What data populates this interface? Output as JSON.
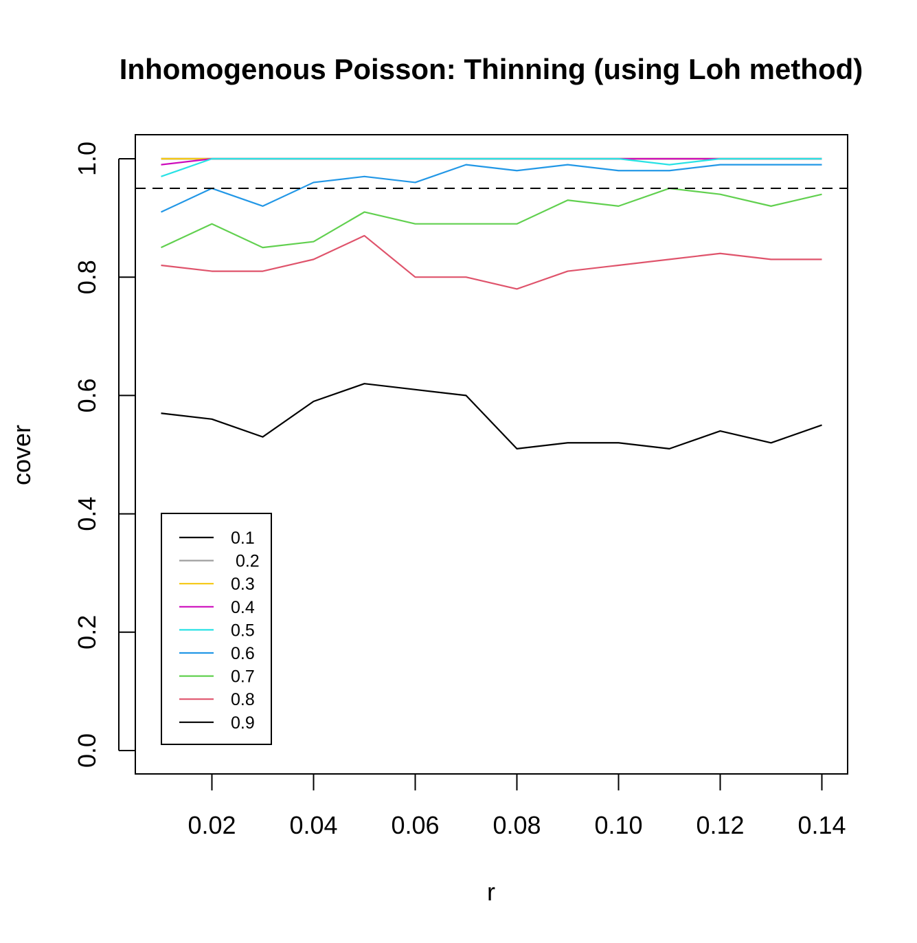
{
  "chart_data": {
    "type": "line",
    "title": "Inhomogenous Poisson: Thinning (using Loh method)",
    "xlabel": "r",
    "ylabel": "cover",
    "xlim": [
      0.01,
      0.14
    ],
    "ylim": [
      0.0,
      1.0
    ],
    "x_ticks": [
      "0.02",
      "0.04",
      "0.06",
      "0.08",
      "0.10",
      "0.12",
      "0.14"
    ],
    "y_ticks": [
      "0.0",
      "0.2",
      "0.4",
      "0.6",
      "0.8",
      "1.0"
    ],
    "x": [
      0.01,
      0.02,
      0.03,
      0.04,
      0.05,
      0.06,
      0.07,
      0.08,
      0.09,
      0.1,
      0.11,
      0.12,
      0.13,
      0.14
    ],
    "reference_line": {
      "y": 0.95,
      "style": "dashed",
      "color": "#000000"
    },
    "legend_position": "bottom-left",
    "grid": false,
    "series": [
      {
        "name": "0.1",
        "color": "#000000",
        "values": [
          1,
          1,
          1,
          1,
          1,
          1,
          1,
          1,
          1,
          1,
          1,
          1,
          1,
          1
        ]
      },
      {
        "name": " 0.2",
        "color": "#9e9e9e",
        "values": [
          1,
          1,
          1,
          1,
          1,
          1,
          1,
          1,
          1,
          1,
          1,
          1,
          1,
          1
        ]
      },
      {
        "name": "0.3",
        "color": "#f5c710",
        "values": [
          1,
          1,
          1,
          1,
          1,
          1,
          1,
          1,
          1,
          1,
          1,
          1,
          1,
          1
        ]
      },
      {
        "name": "0.4",
        "color": "#cd0bbc",
        "values": [
          0.99,
          1,
          1,
          1,
          1,
          1,
          1,
          1,
          1,
          1,
          1,
          1,
          1,
          1
        ]
      },
      {
        "name": "0.5",
        "color": "#28e2e5",
        "values": [
          0.97,
          1,
          1,
          1,
          1,
          1,
          1,
          1,
          1,
          1,
          0.99,
          1,
          1,
          1
        ]
      },
      {
        "name": "0.6",
        "color": "#2297e6",
        "values": [
          0.91,
          0.95,
          0.92,
          0.96,
          0.97,
          0.96,
          0.99,
          0.98,
          0.99,
          0.98,
          0.98,
          0.99,
          0.99,
          0.99
        ]
      },
      {
        "name": "0.7",
        "color": "#61d04f",
        "values": [
          0.85,
          0.89,
          0.85,
          0.86,
          0.91,
          0.89,
          0.89,
          0.89,
          0.93,
          0.92,
          0.95,
          0.94,
          0.92,
          0.94
        ]
      },
      {
        "name": "0.8",
        "color": "#df536b",
        "values": [
          0.82,
          0.81,
          0.81,
          0.83,
          0.87,
          0.8,
          0.8,
          0.78,
          0.81,
          0.82,
          0.83,
          0.84,
          0.83,
          0.83
        ]
      },
      {
        "name": "0.9",
        "color": "#000000",
        "values": [
          0.57,
          0.56,
          0.53,
          0.59,
          0.62,
          0.61,
          0.6,
          0.51,
          0.52,
          0.52,
          0.51,
          0.54,
          0.52,
          0.55
        ]
      }
    ]
  }
}
